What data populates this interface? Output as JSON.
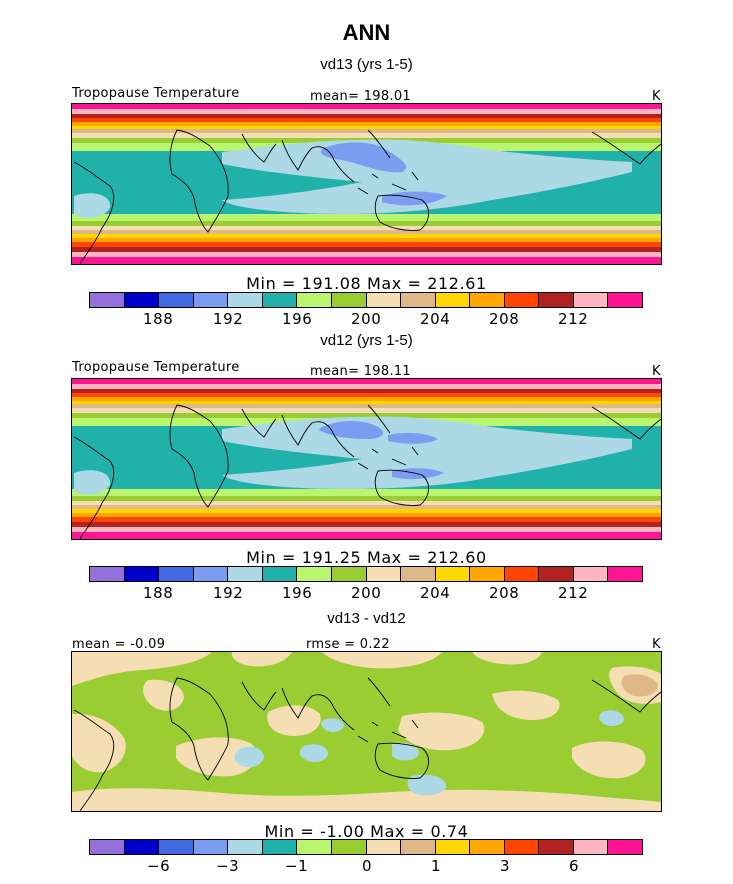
{
  "page_title": "ANN",
  "colors": [
    "#9370db",
    "#0000cd",
    "#4169e1",
    "#7b9cf0",
    "#add8e6",
    "#20b2aa",
    "#b9f56f",
    "#9acd32",
    "#f5deb3",
    "#deb887",
    "#ffd700",
    "#ffa500",
    "#ff4500",
    "#b22222",
    "#ffb6c1",
    "#ff1493"
  ],
  "panels": [
    {
      "subtitle": "vd13 (yrs 1-5)",
      "left_label": "Tropopause Temperature",
      "center_label": "mean= 198.01",
      "right_label": "K",
      "stats": "Min = 191.08 Max = 212.61",
      "ticks": [
        "188",
        "192",
        "196",
        "200",
        "204",
        "208",
        "212"
      ]
    },
    {
      "subtitle": "vd12 (yrs 1-5)",
      "left_label": "Tropopause Temperature",
      "center_label": "mean= 198.11",
      "right_label": "K",
      "stats": "Min = 191.25 Max = 212.60",
      "ticks": [
        "188",
        "192",
        "196",
        "200",
        "204",
        "208",
        "212"
      ]
    },
    {
      "subtitle": "vd13 - vd12",
      "left_label": "mean = -0.09",
      "center_label": "rmse = 0.22",
      "right_label": "K",
      "stats": "Min = -1.00 Max = 0.74",
      "ticks": [
        "−6",
        "−3",
        "−1",
        "0",
        "1",
        "3",
        "6"
      ]
    }
  ],
  "chart_data": [
    {
      "type": "heatmap",
      "title": "vd13 (yrs 1-5)",
      "variable": "Tropopause Temperature",
      "units": "K",
      "mean": 198.01,
      "min": 191.08,
      "max": 212.61,
      "contour_levels": [
        186,
        188,
        190,
        192,
        194,
        196,
        198,
        200,
        202,
        204,
        206,
        208,
        210,
        212,
        214
      ],
      "colorbar_tick_labels": [
        188,
        192,
        196,
        200,
        204,
        208,
        212
      ]
    },
    {
      "type": "heatmap",
      "title": "vd12 (yrs 1-5)",
      "variable": "Tropopause Temperature",
      "units": "K",
      "mean": 198.11,
      "min": 191.25,
      "max": 212.6,
      "contour_levels": [
        186,
        188,
        190,
        192,
        194,
        196,
        198,
        200,
        202,
        204,
        206,
        208,
        210,
        212,
        214
      ],
      "colorbar_tick_labels": [
        188,
        192,
        196,
        200,
        204,
        208,
        212
      ]
    },
    {
      "type": "heatmap",
      "title": "vd13 - vd12",
      "units": "K",
      "mean": -0.09,
      "rmse": 0.22,
      "min": -1.0,
      "max": 0.74,
      "contour_levels": [
        -8,
        -6,
        -4,
        -3,
        -2,
        -1,
        -0.5,
        0,
        0.5,
        1,
        2,
        3,
        4,
        6,
        8
      ],
      "colorbar_tick_labels": [
        -6,
        -3,
        -1,
        0,
        1,
        3,
        6
      ]
    }
  ]
}
